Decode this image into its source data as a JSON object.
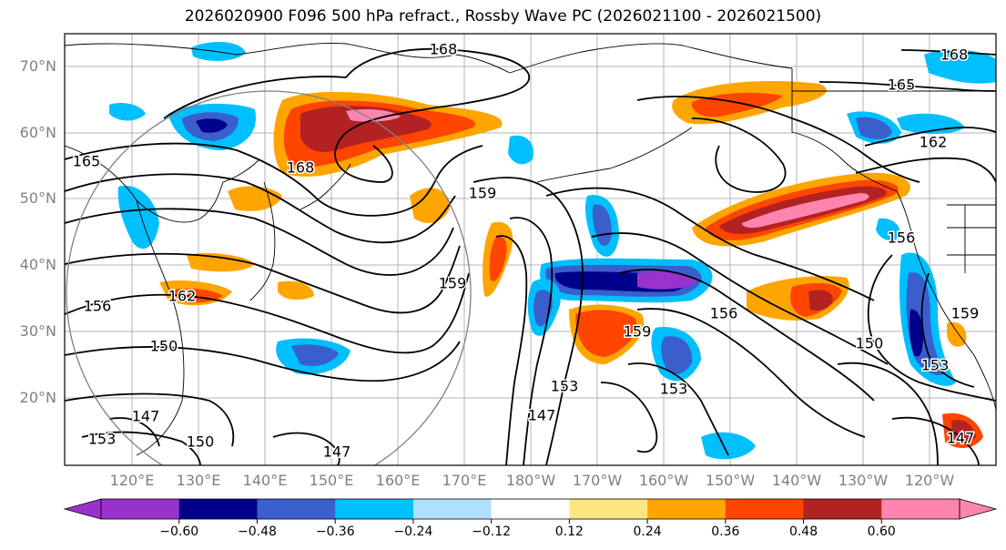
{
  "title": "2026020900 F096 500 hPa refract., Rossby Wave PC (2026021100 - 2026021500)",
  "map": {
    "lat_labels": [
      "70°N",
      "60°N",
      "50°N",
      "40°N",
      "30°N",
      "20°N"
    ],
    "lon_labels": [
      "120°E",
      "130°E",
      "140°E",
      "150°E",
      "160°E",
      "170°E",
      "180°W",
      "170°W",
      "160°W",
      "150°W",
      "140°W",
      "130°W",
      "120°W"
    ],
    "contour_labels": [
      "168",
      "168",
      "165",
      "165",
      "162",
      "168",
      "159",
      "159",
      "156",
      "156",
      "162",
      "156",
      "159",
      "153",
      "150",
      "150",
      "153",
      "147",
      "153",
      "150",
      "147",
      "147",
      "153",
      "159",
      "147"
    ]
  },
  "colorbar": {
    "tick_labels": [
      "−0.60",
      "−0.48",
      "−0.36",
      "−0.24",
      "−0.12",
      "0.12",
      "0.24",
      "0.36",
      "0.48",
      "0.60"
    ],
    "colors": [
      "#9932cc",
      "#00008b",
      "#3a5fcd",
      "#00bfff",
      "#b0e0ff",
      "#ffffff",
      "#ffe680",
      "#ffa500",
      "#ff4500",
      "#b22222",
      "#ff85b0"
    ]
  }
}
